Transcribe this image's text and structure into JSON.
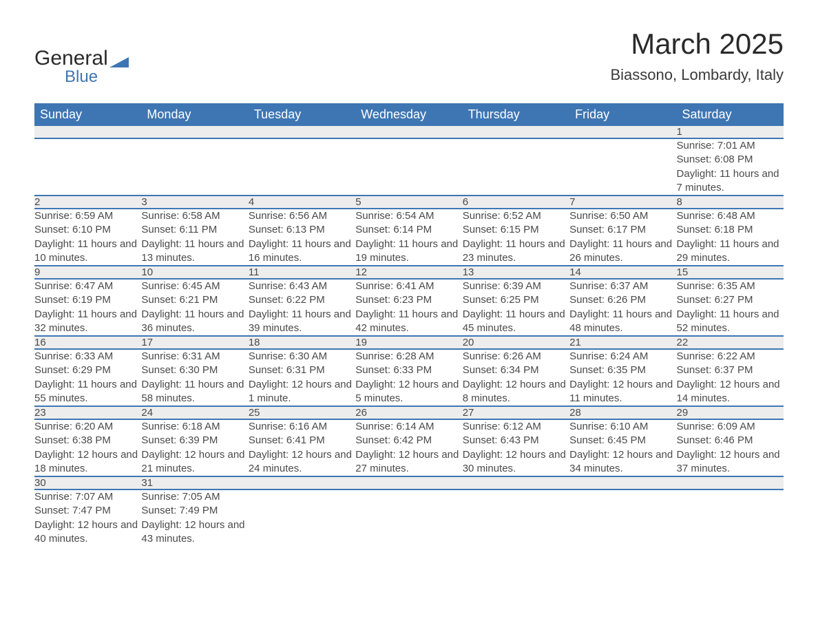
{
  "brand": {
    "name_part1": "General",
    "name_part2": "Blue",
    "brand_color": "#3e76b3"
  },
  "header": {
    "month_title": "March 2025",
    "location": "Biassono, Lombardy, Italy"
  },
  "calendar": {
    "day_headers": [
      "Sunday",
      "Monday",
      "Tuesday",
      "Wednesday",
      "Thursday",
      "Friday",
      "Saturday"
    ],
    "header_bg": "#3e76b3",
    "header_fg": "#ffffff",
    "daynum_bg": "#ededed",
    "divider_color": "#3e76b3",
    "text_color": "#4a4a4a",
    "labels": {
      "sunrise": "Sunrise:",
      "sunset": "Sunset:",
      "daylight": "Daylight:"
    },
    "weeks": [
      [
        null,
        null,
        null,
        null,
        null,
        null,
        {
          "num": "1",
          "sunrise": "7:01 AM",
          "sunset": "6:08 PM",
          "daylight": "11 hours and 7 minutes."
        }
      ],
      [
        {
          "num": "2",
          "sunrise": "6:59 AM",
          "sunset": "6:10 PM",
          "daylight": "11 hours and 10 minutes."
        },
        {
          "num": "3",
          "sunrise": "6:58 AM",
          "sunset": "6:11 PM",
          "daylight": "11 hours and 13 minutes."
        },
        {
          "num": "4",
          "sunrise": "6:56 AM",
          "sunset": "6:13 PM",
          "daylight": "11 hours and 16 minutes."
        },
        {
          "num": "5",
          "sunrise": "6:54 AM",
          "sunset": "6:14 PM",
          "daylight": "11 hours and 19 minutes."
        },
        {
          "num": "6",
          "sunrise": "6:52 AM",
          "sunset": "6:15 PM",
          "daylight": "11 hours and 23 minutes."
        },
        {
          "num": "7",
          "sunrise": "6:50 AM",
          "sunset": "6:17 PM",
          "daylight": "11 hours and 26 minutes."
        },
        {
          "num": "8",
          "sunrise": "6:48 AM",
          "sunset": "6:18 PM",
          "daylight": "11 hours and 29 minutes."
        }
      ],
      [
        {
          "num": "9",
          "sunrise": "6:47 AM",
          "sunset": "6:19 PM",
          "daylight": "11 hours and 32 minutes."
        },
        {
          "num": "10",
          "sunrise": "6:45 AM",
          "sunset": "6:21 PM",
          "daylight": "11 hours and 36 minutes."
        },
        {
          "num": "11",
          "sunrise": "6:43 AM",
          "sunset": "6:22 PM",
          "daylight": "11 hours and 39 minutes."
        },
        {
          "num": "12",
          "sunrise": "6:41 AM",
          "sunset": "6:23 PM",
          "daylight": "11 hours and 42 minutes."
        },
        {
          "num": "13",
          "sunrise": "6:39 AM",
          "sunset": "6:25 PM",
          "daylight": "11 hours and 45 minutes."
        },
        {
          "num": "14",
          "sunrise": "6:37 AM",
          "sunset": "6:26 PM",
          "daylight": "11 hours and 48 minutes."
        },
        {
          "num": "15",
          "sunrise": "6:35 AM",
          "sunset": "6:27 PM",
          "daylight": "11 hours and 52 minutes."
        }
      ],
      [
        {
          "num": "16",
          "sunrise": "6:33 AM",
          "sunset": "6:29 PM",
          "daylight": "11 hours and 55 minutes."
        },
        {
          "num": "17",
          "sunrise": "6:31 AM",
          "sunset": "6:30 PM",
          "daylight": "11 hours and 58 minutes."
        },
        {
          "num": "18",
          "sunrise": "6:30 AM",
          "sunset": "6:31 PM",
          "daylight": "12 hours and 1 minute."
        },
        {
          "num": "19",
          "sunrise": "6:28 AM",
          "sunset": "6:33 PM",
          "daylight": "12 hours and 5 minutes."
        },
        {
          "num": "20",
          "sunrise": "6:26 AM",
          "sunset": "6:34 PM",
          "daylight": "12 hours and 8 minutes."
        },
        {
          "num": "21",
          "sunrise": "6:24 AM",
          "sunset": "6:35 PM",
          "daylight": "12 hours and 11 minutes."
        },
        {
          "num": "22",
          "sunrise": "6:22 AM",
          "sunset": "6:37 PM",
          "daylight": "12 hours and 14 minutes."
        }
      ],
      [
        {
          "num": "23",
          "sunrise": "6:20 AM",
          "sunset": "6:38 PM",
          "daylight": "12 hours and 18 minutes."
        },
        {
          "num": "24",
          "sunrise": "6:18 AM",
          "sunset": "6:39 PM",
          "daylight": "12 hours and 21 minutes."
        },
        {
          "num": "25",
          "sunrise": "6:16 AM",
          "sunset": "6:41 PM",
          "daylight": "12 hours and 24 minutes."
        },
        {
          "num": "26",
          "sunrise": "6:14 AM",
          "sunset": "6:42 PM",
          "daylight": "12 hours and 27 minutes."
        },
        {
          "num": "27",
          "sunrise": "6:12 AM",
          "sunset": "6:43 PM",
          "daylight": "12 hours and 30 minutes."
        },
        {
          "num": "28",
          "sunrise": "6:10 AM",
          "sunset": "6:45 PM",
          "daylight": "12 hours and 34 minutes."
        },
        {
          "num": "29",
          "sunrise": "6:09 AM",
          "sunset": "6:46 PM",
          "daylight": "12 hours and 37 minutes."
        }
      ],
      [
        {
          "num": "30",
          "sunrise": "7:07 AM",
          "sunset": "7:47 PM",
          "daylight": "12 hours and 40 minutes."
        },
        {
          "num": "31",
          "sunrise": "7:05 AM",
          "sunset": "7:49 PM",
          "daylight": "12 hours and 43 minutes."
        },
        null,
        null,
        null,
        null,
        null
      ]
    ]
  }
}
